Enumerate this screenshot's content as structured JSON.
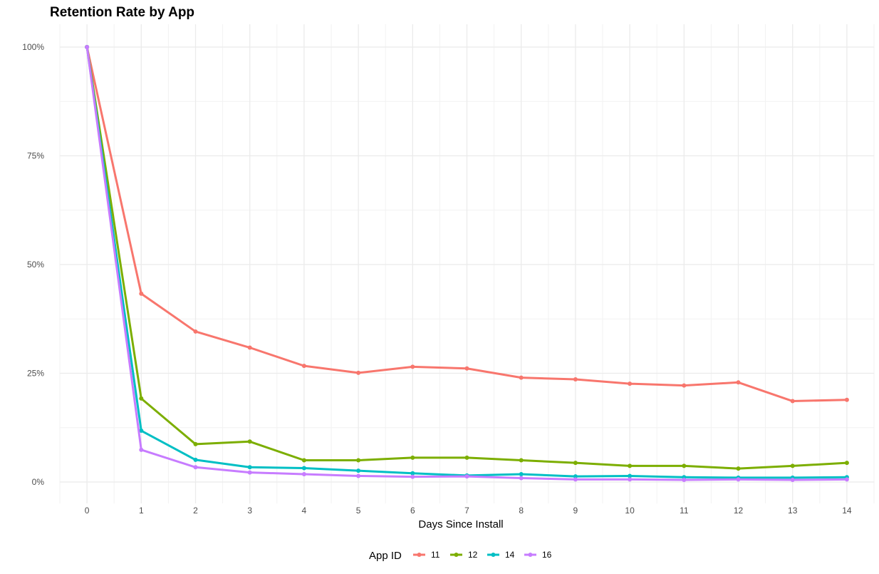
{
  "chart_data": {
    "type": "line",
    "title": "Retention Rate by App",
    "xlabel": "Days Since Install",
    "ylabel": "",
    "x": [
      0,
      1,
      2,
      3,
      4,
      5,
      6,
      7,
      8,
      9,
      10,
      11,
      12,
      13,
      14
    ],
    "xlim": [
      -0.5,
      14.5
    ],
    "ylim": [
      0,
      1
    ],
    "x_ticks": [
      "0",
      "1",
      "2",
      "3",
      "4",
      "5",
      "6",
      "7",
      "8",
      "9",
      "10",
      "11",
      "12",
      "13",
      "14"
    ],
    "y_ticks": [
      {
        "value": 0,
        "label": "0%"
      },
      {
        "value": 0.25,
        "label": "25%"
      },
      {
        "value": 0.5,
        "label": "50%"
      },
      {
        "value": 0.75,
        "label": "75%"
      },
      {
        "value": 1,
        "label": "100%"
      }
    ],
    "grid": true,
    "legend": {
      "title": "App ID",
      "position": "bottom"
    },
    "series": [
      {
        "name": "11",
        "color": "#F8766D",
        "values": [
          1.0,
          0.433,
          0.346,
          0.309,
          0.267,
          0.251,
          0.265,
          0.261,
          0.24,
          0.236,
          0.226,
          0.222,
          0.229,
          0.186,
          0.189
        ]
      },
      {
        "name": "12",
        "color": "#7CAE00",
        "values": [
          1.0,
          0.192,
          0.087,
          0.093,
          0.05,
          0.05,
          0.056,
          0.056,
          0.05,
          0.044,
          0.037,
          0.037,
          0.031,
          0.037,
          0.044
        ]
      },
      {
        "name": "14",
        "color": "#00BFC4",
        "values": [
          1.0,
          0.118,
          0.051,
          0.034,
          0.032,
          0.026,
          0.02,
          0.015,
          0.018,
          0.013,
          0.014,
          0.011,
          0.01,
          0.01,
          0.011
        ]
      },
      {
        "name": "16",
        "color": "#C77CFF",
        "values": [
          1.0,
          0.074,
          0.034,
          0.022,
          0.018,
          0.014,
          0.012,
          0.013,
          0.009,
          0.006,
          0.006,
          0.005,
          0.006,
          0.005,
          0.006
        ]
      }
    ]
  }
}
